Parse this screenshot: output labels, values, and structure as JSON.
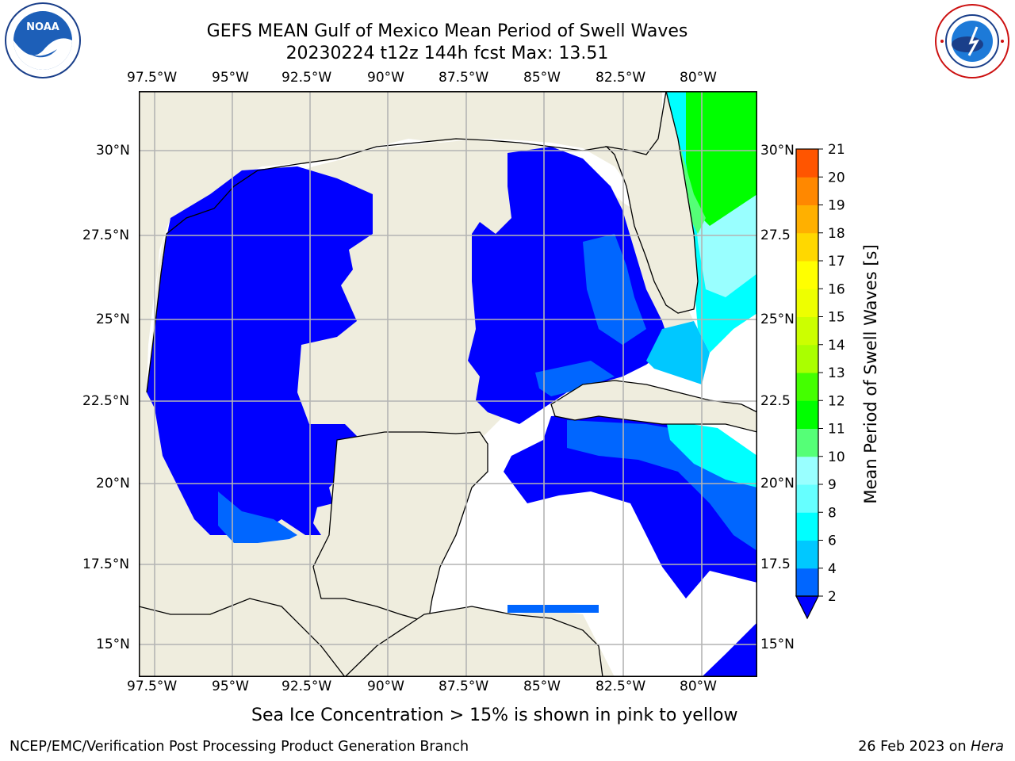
{
  "header": {
    "title_line1": "GEFS MEAN Gulf of Mexico Mean Period of Swell Waves",
    "title_line2": "20230224 t12z 144h fcst   Max: 13.51"
  },
  "logos": {
    "noaa_text": "NOAA",
    "noaa_ring": "NATIONAL OCEANIC AND ATMOSPHERIC ADMINISTRATION · U.S. DEPARTMENT OF COMMERCE",
    "nws_ring": "NATIONAL WEATHER SERVICE"
  },
  "map": {
    "lon_labels": [
      "97.5°W",
      "95°W",
      "92.5°W",
      "90°W",
      "87.5°W",
      "85°W",
      "82.5°W",
      "80°W"
    ],
    "lat_labels_left": [
      "30°N",
      "27.5°N",
      "25°N",
      "22.5°N",
      "20°N",
      "17.5°N",
      "15°N"
    ],
    "lat_labels_right": [
      "30°N",
      "27.5",
      "25°N",
      "22.5",
      "20°N",
      "17.5",
      "15°N"
    ],
    "colors": {
      "land": "#efedde",
      "water_no_data": "#ffffff",
      "grid": "#b4b4b4",
      "coast": "#000000"
    }
  },
  "colorbar": {
    "label": "Mean Period of Swell Waves [s]",
    "ticks": [
      "2",
      "4",
      "6",
      "8",
      "9",
      "10",
      "11",
      "12",
      "13",
      "14",
      "15",
      "16",
      "17",
      "18",
      "19",
      "20",
      "21"
    ],
    "bands": [
      "#0066ff",
      "#00c8ff",
      "#00ffff",
      "#66ffff",
      "#99ffff",
      "#55ff77",
      "#00ff00",
      "#44ff00",
      "#aaff00",
      "#ccff00",
      "#eeff00",
      "#ffff00",
      "#ffd800",
      "#ffb000",
      "#ff8800",
      "#ff5500",
      "#ff2a00",
      "#ff0000"
    ],
    "under_color": "#0000ff"
  },
  "caption": "Sea Ice Concentration > 15% is shown in pink to yellow",
  "footer": {
    "left": "NCEP/EMC/Verification Post Processing Product Generation Branch",
    "date": "26 Feb 2023 on ",
    "host": "Hera"
  }
}
